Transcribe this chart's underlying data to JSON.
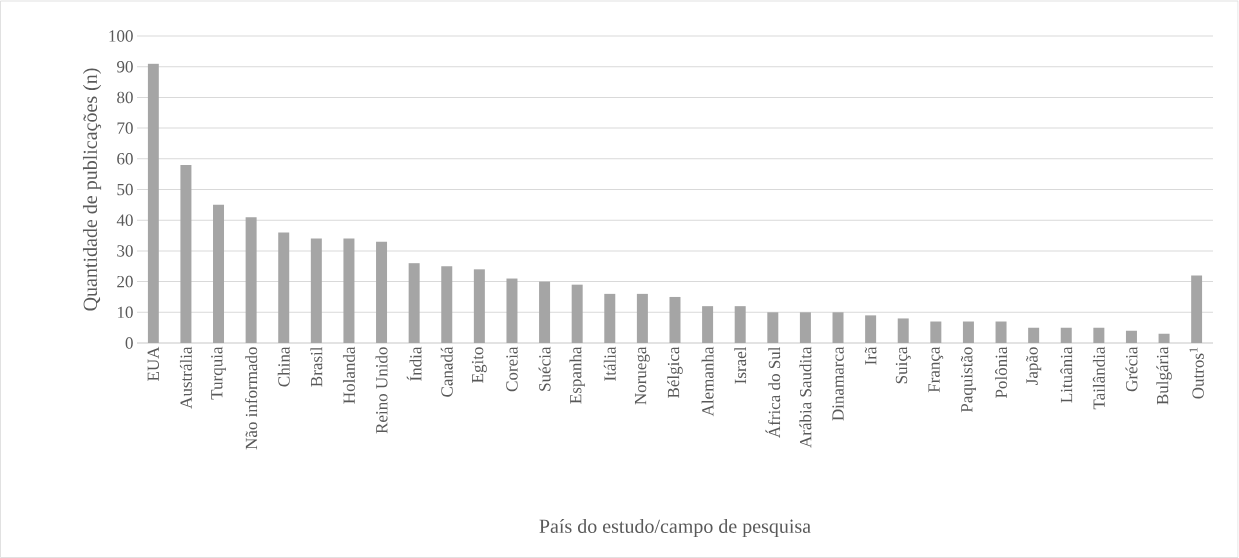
{
  "chart_data": {
    "type": "bar",
    "xlabel": "País do estudo/campo de pesquisa",
    "ylabel": "Quantidade de publicações (n)",
    "categories": [
      "EUA",
      "Austrália",
      "Turquia",
      "Não informado",
      "China",
      "Brasil",
      "Holanda",
      "Reino Unido",
      "Índia",
      "Canadá",
      "Egito",
      "Coreia",
      "Suécia",
      "Espanha",
      "Itália",
      "Noruega",
      "Bélgica",
      "Alemanha",
      "Israel",
      "África do Sul",
      "Arábia Saudita",
      "Dinamarca",
      "Irã",
      "Suiça",
      "França",
      "Paquistão",
      "Polônia",
      "Japão",
      "Lituânia",
      "Tailândia",
      "Grécia",
      "Bulgária",
      "Outros$^{1}$"
    ],
    "values": [
      91,
      58,
      45,
      41,
      36,
      34,
      34,
      33,
      26,
      25,
      24,
      21,
      20,
      19,
      16,
      16,
      15,
      12,
      12,
      10,
      10,
      10,
      9,
      8,
      7,
      7,
      7,
      5,
      5,
      5,
      4,
      3,
      22
    ],
    "color": "#a5a5a5",
    "ylim": [
      0,
      100
    ],
    "yticks": [
      0,
      10,
      20,
      30,
      40,
      50,
      60,
      70,
      80,
      90,
      100
    ],
    "grid": "y"
  }
}
